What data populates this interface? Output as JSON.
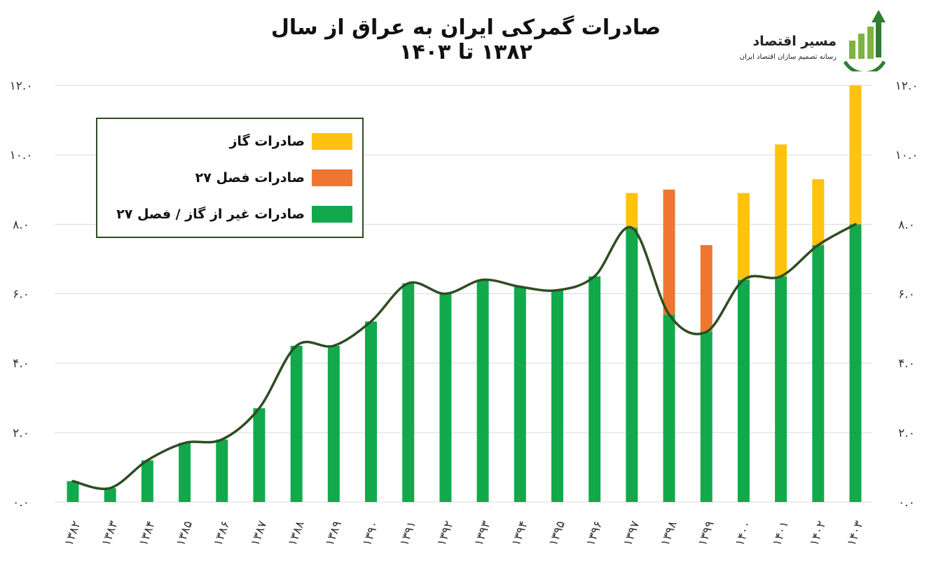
{
  "title": "صادرات گمرکی ایران به عراق از سال ۱۳۸۲ تا ۱۴۰۳",
  "brand": {
    "name": "مسیر اقتصاد",
    "tagline": "رسانه تصمیم سازان اقتصاد ایران",
    "icon": "bar-chart-gear-arrow-icon",
    "colors": [
      "#7cb342",
      "#2e7d32"
    ]
  },
  "legend": [
    {
      "label": "صادرات گاز",
      "color": "#ffc20e"
    },
    {
      "label": "صادرات فصل ۲۷",
      "color": "#ee7630"
    },
    {
      "label": "صادرات غیر از گاز / فصل ۲۷",
      "color": "#12a94c"
    }
  ],
  "chart_data": {
    "type": "bar",
    "stacked": true,
    "categories": [
      "۱۳۸۲",
      "۱۳۸۳",
      "۱۳۸۴",
      "۱۳۸۵",
      "۱۳۸۶",
      "۱۳۸۷",
      "۱۳۸۸",
      "۱۳۸۹",
      "۱۳۹۰",
      "۱۳۹۱",
      "۱۳۹۲",
      "۱۳۹۳",
      "۱۳۹۴",
      "۱۳۹۵",
      "۱۳۹۶",
      "۱۳۹۷",
      "۱۳۹۸",
      "۱۳۹۹",
      "۱۴۰۰",
      "۱۴۰۱",
      "۱۴۰۲",
      "۱۴۰۳"
    ],
    "series": [
      {
        "name": "صادرات غیر از گاز / فصل ۲۷",
        "color": "#12a94c",
        "values": [
          0.6,
          0.4,
          1.2,
          1.7,
          1.8,
          2.7,
          4.5,
          4.5,
          5.2,
          6.3,
          6.0,
          6.4,
          6.2,
          6.1,
          6.5,
          7.9,
          5.4,
          4.9,
          6.4,
          6.5,
          7.4,
          8.0
        ]
      },
      {
        "name": "صادرات فصل ۲۷",
        "color": "#ee7630",
        "values": [
          0,
          0,
          0,
          0,
          0,
          0,
          0,
          0,
          0,
          0,
          0,
          0,
          0,
          0,
          0,
          0,
          3.6,
          2.5,
          0,
          0,
          0,
          0
        ]
      },
      {
        "name": "صادرات گاز",
        "color": "#ffc20e",
        "values": [
          0,
          0,
          0,
          0,
          0,
          0,
          0,
          0,
          0,
          0,
          0,
          0,
          0,
          0,
          0,
          1.0,
          0,
          0,
          2.5,
          3.8,
          1.9,
          4.0
        ]
      }
    ],
    "trend_line": {
      "color": "#2e4d23",
      "values": [
        0.6,
        0.4,
        1.2,
        1.7,
        1.8,
        2.7,
        4.5,
        4.5,
        5.2,
        6.3,
        6.0,
        6.4,
        6.2,
        6.1,
        6.5,
        7.9,
        5.4,
        4.9,
        6.4,
        6.5,
        7.4,
        8.0
      ]
    },
    "ylim": [
      0,
      12
    ],
    "yticks": [
      {
        "value": 0,
        "label": "۰.۰"
      },
      {
        "value": 2,
        "label": "۲.۰"
      },
      {
        "value": 4,
        "label": "۴.۰"
      },
      {
        "value": 6,
        "label": "۶.۰"
      },
      {
        "value": 8,
        "label": "۸.۰"
      },
      {
        "value": 10,
        "label": "۱۰.۰"
      },
      {
        "value": 12,
        "label": "۱۲.۰"
      }
    ],
    "grid": true,
    "yaxis_both_sides": true,
    "legend_position": "top-left",
    "xlabel": "",
    "ylabel": ""
  }
}
